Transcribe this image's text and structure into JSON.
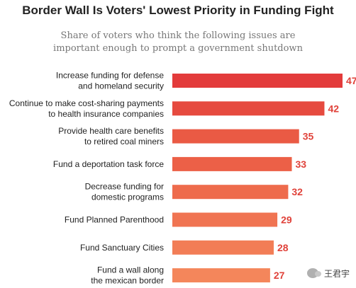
{
  "chart_data": {
    "type": "bar",
    "orientation": "horizontal",
    "title": "Border Wall Is Voters' Lowest Priority in Funding Fight",
    "subtitle": [
      "Share of voters who think the following issues are",
      "important enough to prompt a government shutdown"
    ],
    "categories": [
      [
        "Increase funding for defense",
        "and homeland security"
      ],
      [
        "Continue to make cost-sharing payments",
        "to health insurance companies"
      ],
      [
        "Provide health care benefits",
        "to retired coal miners"
      ],
      [
        "Fund a deportation task force"
      ],
      [
        "Decrease funding for",
        "domestic programs"
      ],
      [
        "Fund Planned Parenthood"
      ],
      [
        "Fund Sanctuary Cities"
      ],
      [
        "Fund a wall along",
        "the mexican border"
      ]
    ],
    "values": [
      47,
      42,
      35,
      33,
      32,
      29,
      28,
      27
    ],
    "value_labels": [
      "47%",
      "42",
      "35",
      "33",
      "32",
      "29",
      "28",
      "27"
    ],
    "colors": [
      "#e33b3b",
      "#e64a3f",
      "#ea5a44",
      "#ec6047",
      "#ee6b4c",
      "#f07452",
      "#f27d56",
      "#f4865b"
    ],
    "label_color": "#e0423a",
    "xlim": [
      0,
      47
    ]
  },
  "watermark": {
    "text": "王君宇",
    "icon": "wechat-icon"
  }
}
